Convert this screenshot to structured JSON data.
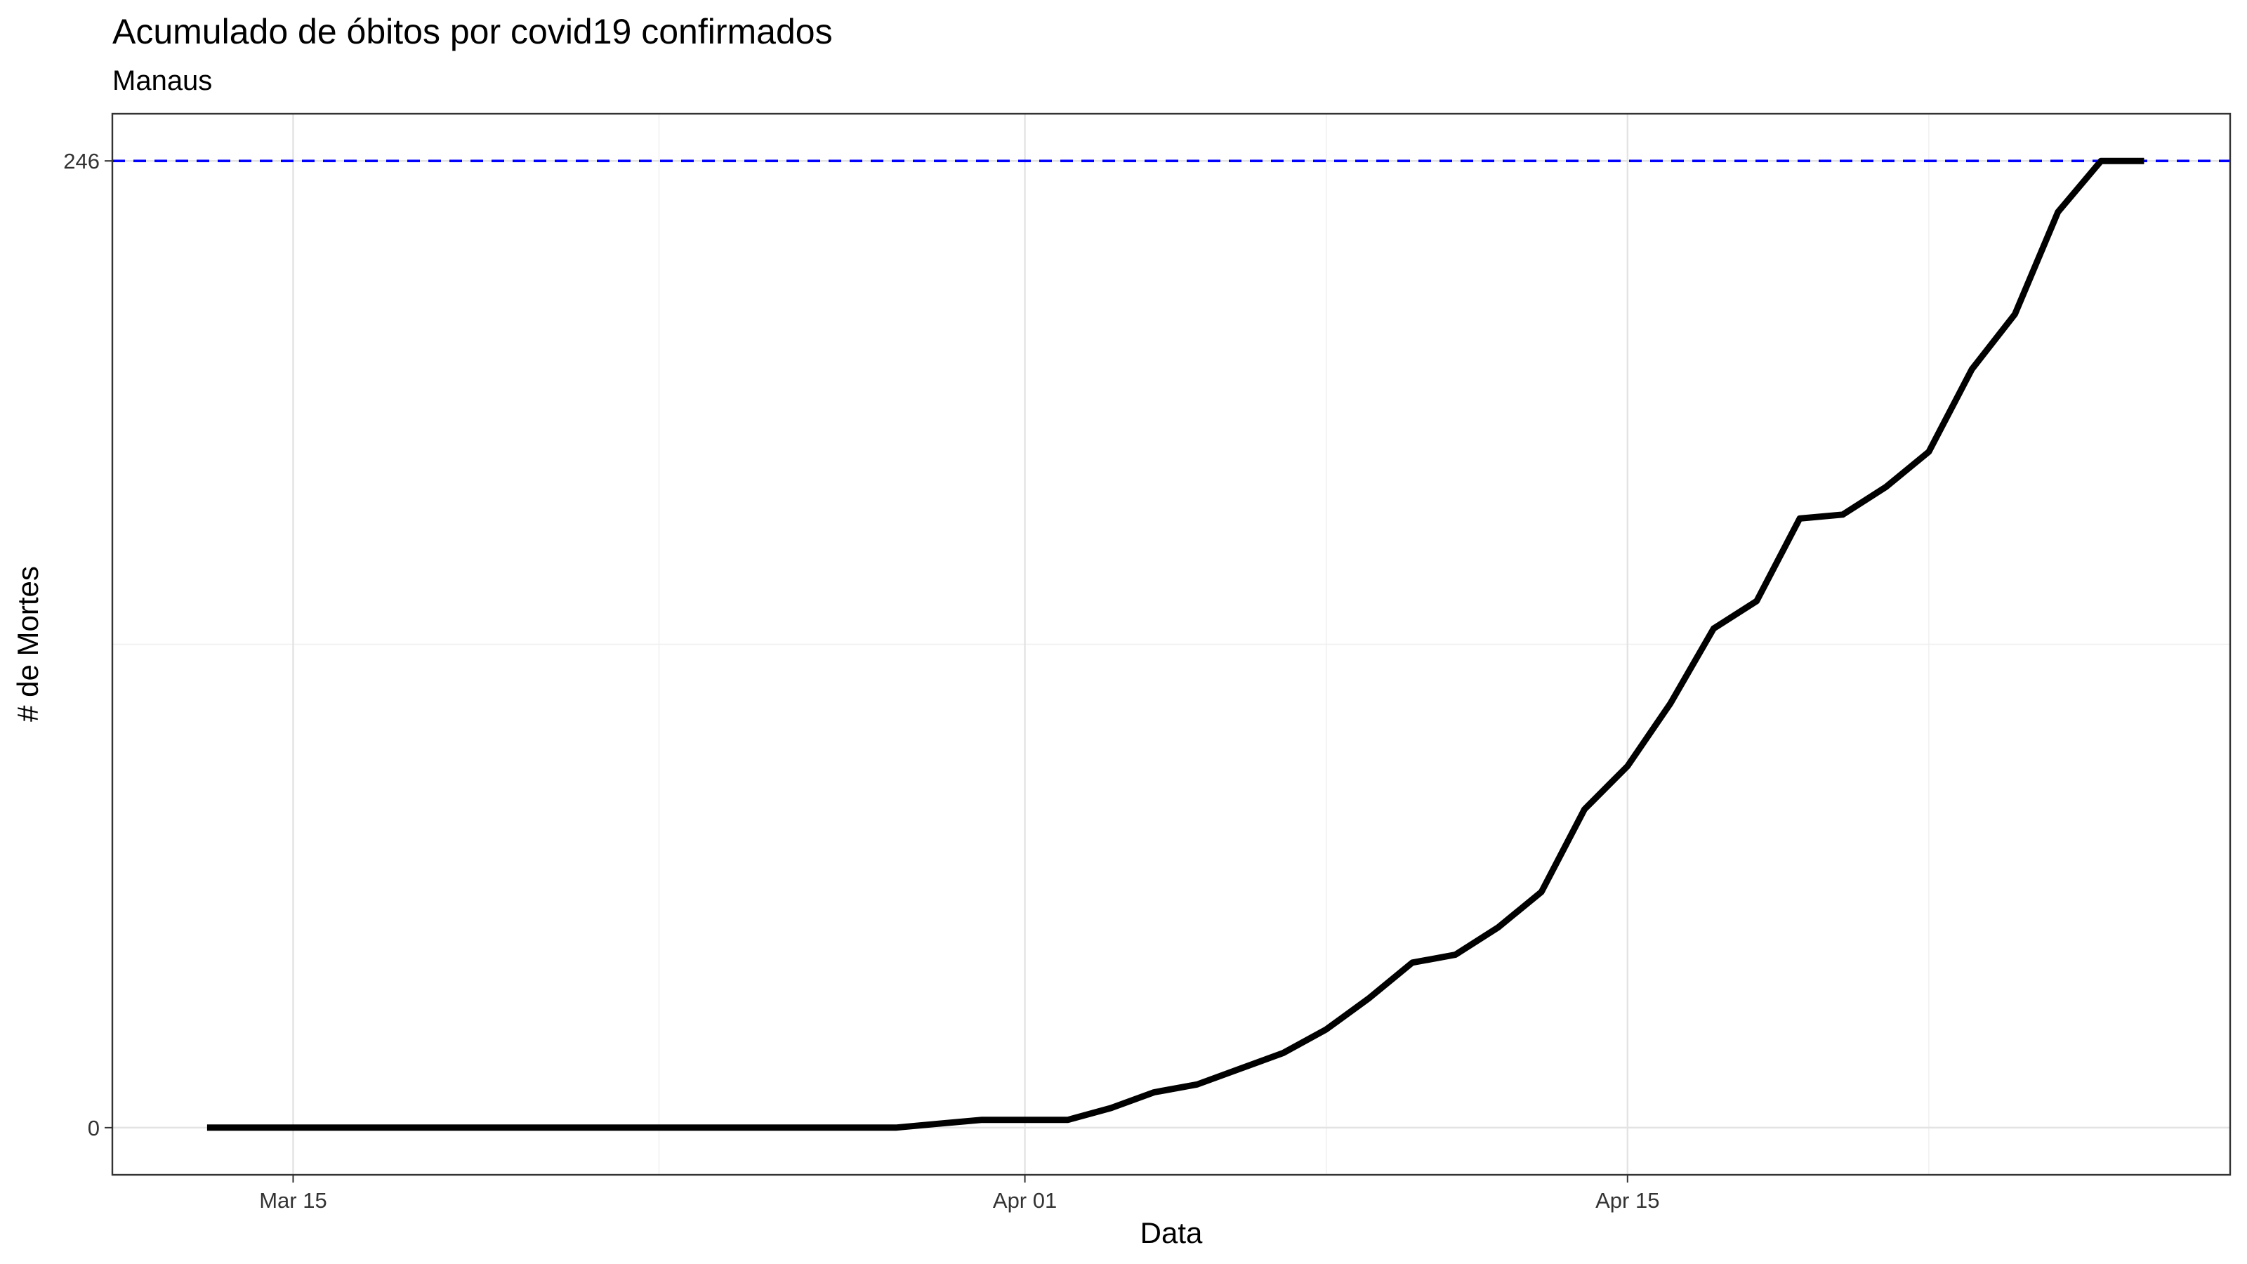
{
  "chart_data": {
    "type": "line",
    "title": "Acumulado de óbitos por covid19 confirmados",
    "subtitle": "Manaus",
    "xlabel": "Data",
    "ylabel": "# de Mortes",
    "x_ticks": [
      {
        "date": "2020-03-15",
        "label": "Mar 15"
      },
      {
        "date": "2020-04-01",
        "label": "Apr 01"
      },
      {
        "date": "2020-04-15",
        "label": "Apr 15"
      }
    ],
    "y_ticks": [
      0,
      246
    ],
    "xlim": [
      "2020-03-10.8",
      "2020-04-29"
    ],
    "ylim": [
      -12,
      258
    ],
    "grid": true,
    "reference_line": {
      "value": 246,
      "color": "#0000ff",
      "style": "dashed"
    },
    "series": [
      {
        "color": "#000000",
        "x": [
          "2020-03-13",
          "2020-03-14",
          "2020-03-15",
          "2020-03-16",
          "2020-03-17",
          "2020-03-18",
          "2020-03-19",
          "2020-03-20",
          "2020-03-21",
          "2020-03-22",
          "2020-03-23",
          "2020-03-24",
          "2020-03-25",
          "2020-03-26",
          "2020-03-27",
          "2020-03-28",
          "2020-03-29",
          "2020-03-30",
          "2020-03-31",
          "2020-04-01",
          "2020-04-02",
          "2020-04-03",
          "2020-04-04",
          "2020-04-05",
          "2020-04-06",
          "2020-04-07",
          "2020-04-08",
          "2020-04-09",
          "2020-04-10",
          "2020-04-11",
          "2020-04-12",
          "2020-04-13",
          "2020-04-14",
          "2020-04-15",
          "2020-04-16",
          "2020-04-17",
          "2020-04-18",
          "2020-04-19",
          "2020-04-20",
          "2020-04-21",
          "2020-04-22",
          "2020-04-23",
          "2020-04-24",
          "2020-04-25",
          "2020-04-26",
          "2020-04-27"
        ],
        "y": [
          0,
          0,
          0,
          0,
          0,
          0,
          0,
          0,
          0,
          0,
          0,
          0,
          0,
          0,
          0,
          0,
          0,
          1,
          2,
          2,
          2,
          5,
          9,
          11,
          15,
          19,
          25,
          33,
          42,
          44,
          51,
          60,
          81,
          92,
          108,
          127,
          134,
          155,
          156,
          163,
          172,
          193,
          207,
          233,
          246,
          246
        ]
      }
    ]
  }
}
